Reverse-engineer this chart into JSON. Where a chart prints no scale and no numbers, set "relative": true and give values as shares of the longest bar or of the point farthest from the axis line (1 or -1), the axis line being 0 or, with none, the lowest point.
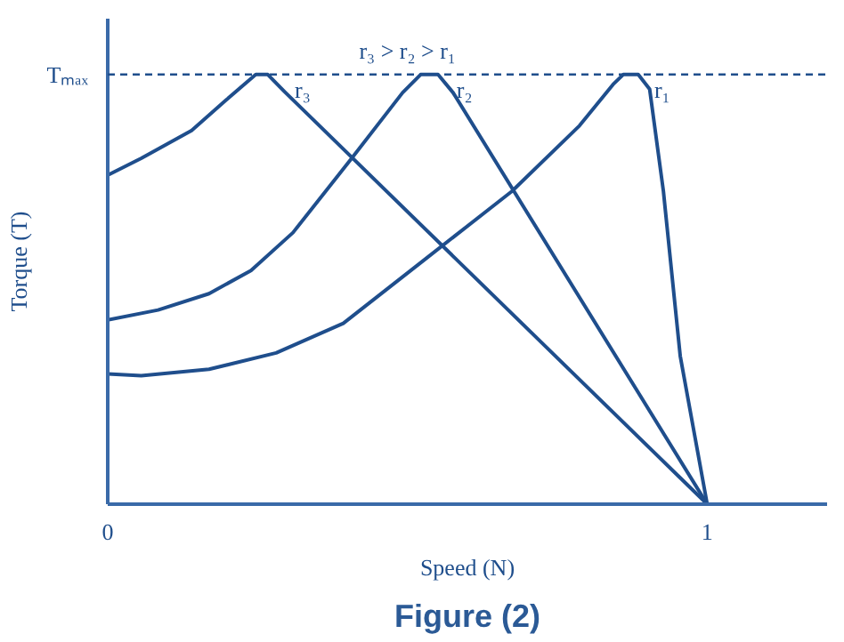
{
  "chart_data": {
    "type": "line",
    "title": "Figure (2)",
    "xlabel": "Speed (N)",
    "ylabel": "Torque (T)",
    "relative": true,
    "xlim": [
      0,
      1.2
    ],
    "xticks": [
      0,
      1
    ],
    "annotations": [
      "r₃ > r₂ > r₁"
    ],
    "ref_lines": [
      {
        "axis": "y",
        "value": 1,
        "label": "Tₘₐₓ",
        "line_style": "dashed"
      }
    ],
    "series": [
      {
        "name": "r₃",
        "color": "#1f4e8c",
        "x": [
          0,
          0.056,
          0.14,
          0.197,
          0.247,
          0.267,
          0.295,
          1
        ],
        "values": [
          0.766,
          0.805,
          0.87,
          0.94,
          1.0,
          1.0,
          0.96,
          0
        ]
      },
      {
        "name": "r₂",
        "color": "#1f4e8c",
        "x": [
          0,
          0.084,
          0.169,
          0.239,
          0.309,
          0.407,
          0.492,
          0.522,
          0.551,
          0.576,
          1
        ],
        "values": [
          0.429,
          0.452,
          0.49,
          0.544,
          0.632,
          0.805,
          0.958,
          1.0,
          1.0,
          0.958,
          0
        ]
      },
      {
        "name": "r₁",
        "color": "#1f4e8c",
        "x": [
          0,
          0.056,
          0.169,
          0.281,
          0.393,
          0.534,
          0.674,
          0.787,
          0.843,
          0.86,
          0.885,
          0.904,
          0.927,
          0.955,
          1
        ],
        "values": [
          0.303,
          0.299,
          0.314,
          0.352,
          0.421,
          0.575,
          0.728,
          0.881,
          0.977,
          1.0,
          1.0,
          0.966,
          0.728,
          0.345,
          0
        ]
      }
    ],
    "grid": false,
    "line_style": "solid"
  }
}
